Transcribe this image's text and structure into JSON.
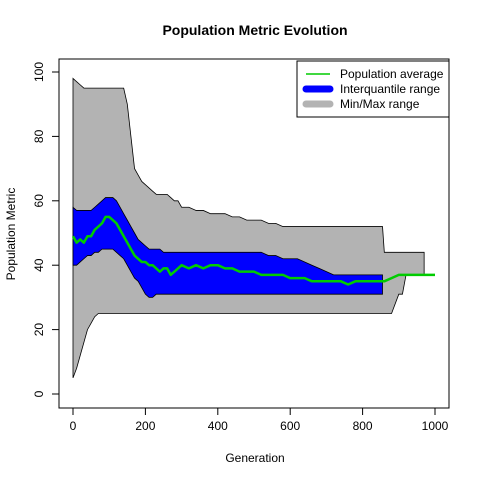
{
  "chart_data": {
    "type": "area",
    "title": "Population Metric Evolution",
    "xlabel": "Generation",
    "ylabel": "Population Metric",
    "xlim": [
      0,
      1000
    ],
    "ylim": [
      0,
      100
    ],
    "xticks": [
      0,
      200,
      400,
      600,
      800,
      1000
    ],
    "yticks": [
      0,
      20,
      40,
      60,
      80,
      100
    ],
    "grid": false,
    "legend": {
      "position": "top-right",
      "entries": [
        {
          "name": "Population average",
          "color": "#00cc00",
          "style": "line"
        },
        {
          "name": "Interquantile range",
          "color": "#0000ff",
          "style": "thick"
        },
        {
          "name": "Min/Max range",
          "color": "#b3b3b3",
          "style": "thick"
        }
      ]
    },
    "x": [
      0,
      10,
      20,
      30,
      40,
      50,
      60,
      70,
      80,
      90,
      100,
      110,
      120,
      130,
      140,
      150,
      160,
      170,
      180,
      190,
      200,
      210,
      220,
      230,
      240,
      250,
      260,
      270,
      280,
      290,
      300,
      320,
      340,
      360,
      380,
      400,
      420,
      440,
      460,
      480,
      500,
      520,
      540,
      560,
      580,
      600,
      620,
      640,
      660,
      680,
      700,
      720,
      740,
      760,
      780,
      800,
      820,
      840,
      855,
      860,
      880,
      900,
      910,
      920,
      940,
      960,
      970,
      980,
      1000
    ],
    "series": [
      {
        "name": "Min/Max range",
        "color": "#b3b3b3",
        "upper": [
          98,
          97,
          96,
          95,
          95,
          95,
          95,
          95,
          95,
          95,
          95,
          95,
          95,
          95,
          95,
          90,
          80,
          70,
          68,
          66,
          65,
          64,
          63,
          62,
          62,
          62,
          62,
          61,
          60,
          60,
          58,
          58,
          57,
          57,
          56,
          56,
          56,
          55,
          55,
          54,
          54,
          54,
          53,
          53,
          52,
          52,
          52,
          52,
          52,
          52,
          52,
          52,
          52,
          52,
          52,
          52,
          52,
          52,
          52,
          44,
          44,
          44,
          44,
          44,
          44,
          44,
          44,
          null,
          null
        ],
        "lower": [
          5,
          8,
          12,
          16,
          20,
          22,
          24,
          25,
          25,
          25,
          25,
          25,
          25,
          25,
          25,
          25,
          25,
          25,
          25,
          25,
          25,
          25,
          25,
          25,
          25,
          25,
          25,
          25,
          25,
          25,
          25,
          25,
          25,
          25,
          25,
          25,
          25,
          25,
          25,
          25,
          25,
          25,
          25,
          25,
          25,
          25,
          25,
          25,
          25,
          25,
          25,
          25,
          25,
          25,
          25,
          25,
          25,
          25,
          25,
          25,
          25,
          31,
          31,
          37,
          37,
          37,
          37,
          null,
          null
        ]
      },
      {
        "name": "Interquantile range",
        "color": "#0000ff",
        "upper": [
          58,
          57,
          57,
          57,
          57,
          57,
          58,
          59,
          60,
          61,
          61,
          61,
          60,
          58,
          56,
          54,
          52,
          50,
          48,
          47,
          46,
          45,
          45,
          45,
          45,
          44,
          44,
          44,
          44,
          44,
          44,
          44,
          44,
          44,
          44,
          44,
          44,
          44,
          44,
          44,
          44,
          44,
          43,
          43,
          42,
          42,
          42,
          41,
          40,
          39,
          38,
          37,
          37,
          37,
          37,
          37,
          37,
          37,
          37,
          null,
          null,
          null,
          null,
          null,
          null,
          null,
          null,
          null,
          null
        ],
        "lower": [
          40,
          40,
          41,
          42,
          43,
          43,
          44,
          44,
          45,
          45,
          45,
          45,
          44,
          43,
          42,
          40,
          38,
          36,
          35,
          33,
          31,
          30,
          30,
          31,
          31,
          31,
          31,
          31,
          31,
          31,
          31,
          31,
          31,
          31,
          31,
          31,
          31,
          31,
          31,
          31,
          31,
          31,
          31,
          31,
          31,
          31,
          31,
          31,
          31,
          31,
          31,
          31,
          31,
          31,
          31,
          31,
          31,
          31,
          31,
          null,
          null,
          null,
          null,
          null,
          null,
          null,
          null,
          null,
          null
        ]
      },
      {
        "name": "Population average",
        "color": "#00cc00",
        "values": [
          49,
          47,
          48,
          47,
          49,
          49,
          51,
          52,
          53,
          55,
          55,
          54,
          53,
          51,
          49,
          47,
          45,
          43,
          42,
          41,
          41,
          40,
          40,
          39,
          38,
          39,
          39,
          37,
          38,
          39,
          40,
          39,
          40,
          39,
          40,
          40,
          39,
          39,
          38,
          38,
          38,
          37,
          37,
          37,
          37,
          36,
          36,
          36,
          35,
          35,
          35,
          35,
          35,
          34,
          35,
          35,
          35,
          35,
          35,
          35,
          36,
          37,
          37,
          37,
          37,
          37,
          37,
          37,
          37
        ]
      }
    ]
  }
}
